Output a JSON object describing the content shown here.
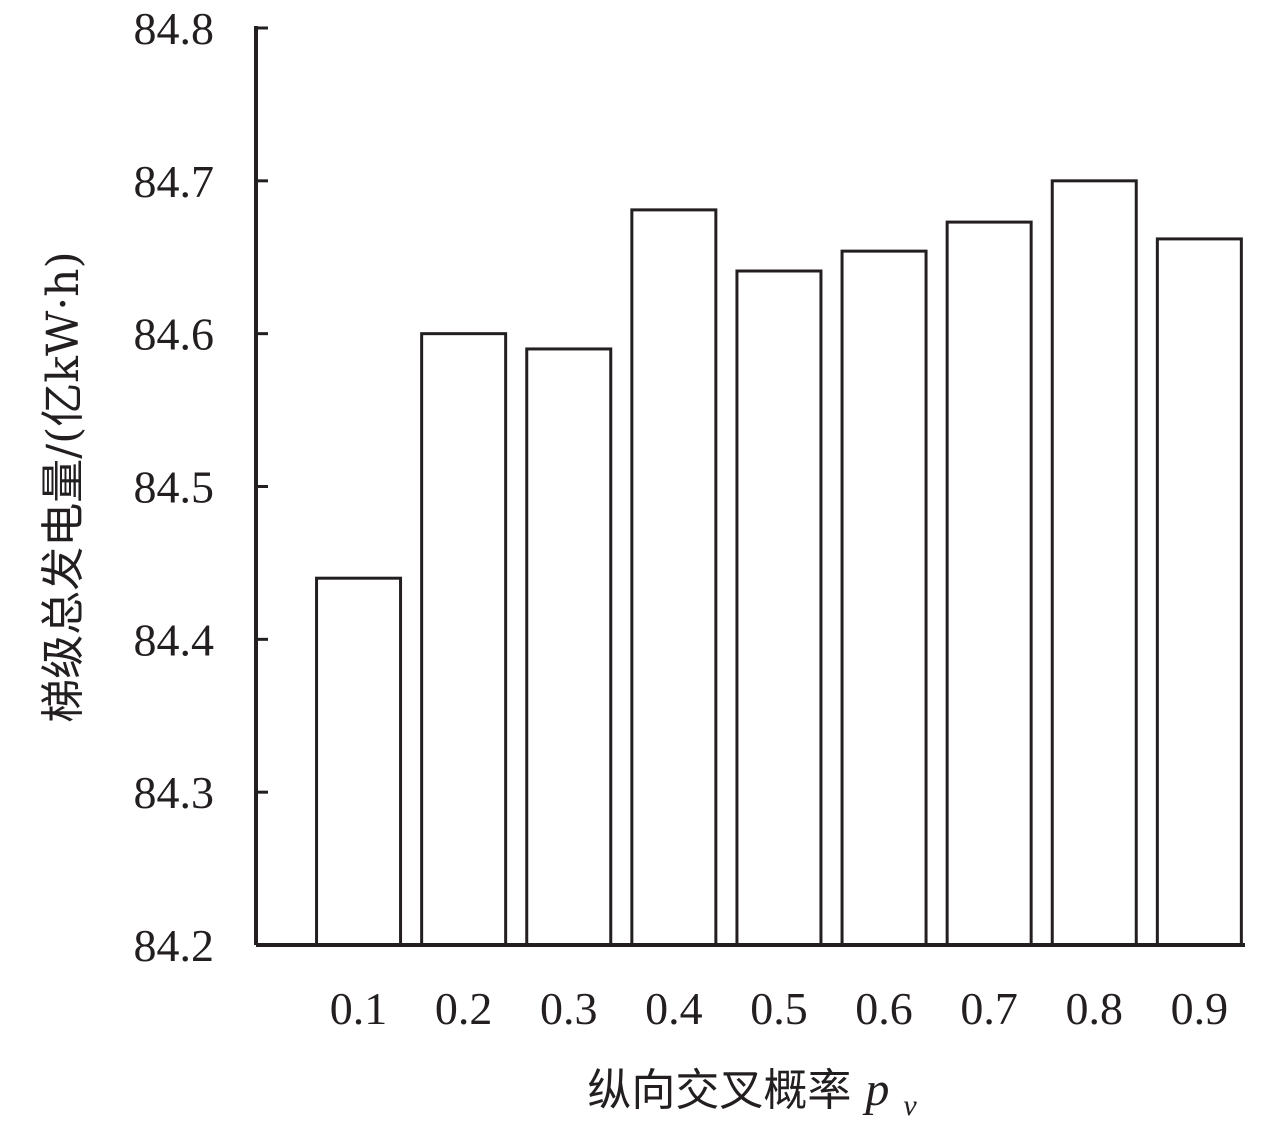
{
  "chart_data": {
    "type": "bar",
    "categories": [
      "0.1",
      "0.2",
      "0.3",
      "0.4",
      "0.5",
      "0.6",
      "0.7",
      "0.8",
      "0.9"
    ],
    "values": [
      84.44,
      84.6,
      84.59,
      84.681,
      84.641,
      84.654,
      84.673,
      84.7,
      84.662
    ],
    "ylim": [
      84.2,
      84.8
    ],
    "yticks": [
      "84.2",
      "84.3",
      "84.4",
      "84.5",
      "84.6",
      "84.7",
      "84.8"
    ],
    "ylabel": "梯级总发电量/(亿kW·h)",
    "xlabel": {
      "main": "纵向交叉概率",
      "symbol": "p",
      "subscript": "v"
    },
    "grid": false,
    "bar_fill": "#ffffff",
    "bar_stroke": "#231f20"
  }
}
